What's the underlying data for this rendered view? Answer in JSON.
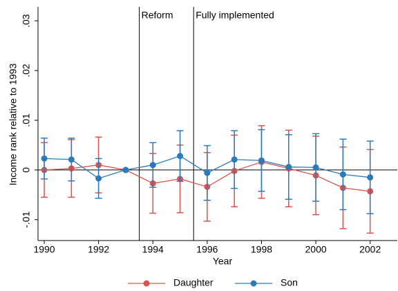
{
  "chart_data": {
    "type": "line",
    "x_label": "Year",
    "y_label": "Income rank relative to 1993",
    "x": [
      1990,
      1991,
      1992,
      1993,
      1994,
      1995,
      1996,
      1997,
      1998,
      1999,
      2000,
      2001,
      2002
    ],
    "xlim": [
      1989.77,
      2003
    ],
    "xticks": [
      1990,
      1992,
      1994,
      1996,
      1998,
      2000,
      2002
    ],
    "ylim": [
      -0.0142,
      0.0328
    ],
    "yticks": [
      {
        "value": -0.01,
        "label": "-.01"
      },
      {
        "value": 0,
        "label": "0"
      },
      {
        "value": 0.01,
        "label": ".01"
      },
      {
        "value": 0.02,
        "label": ".02"
      },
      {
        "value": 0.03,
        "label": ".03"
      }
    ],
    "reference_y": 0,
    "vlines": [
      {
        "x": 1993.5,
        "label": "Reform"
      },
      {
        "x": 1995.5,
        "label": "Fully implemented"
      }
    ],
    "legend": "bottom",
    "series": [
      {
        "name": "Daughter",
        "color": "#d9534f",
        "values": [
          0.0,
          0.0003,
          0.001,
          0.0,
          -0.0027,
          -0.0018,
          -0.0034,
          -0.0002,
          0.0016,
          0.0003,
          -0.0011,
          -0.0036,
          -0.0043
        ],
        "errors": [
          0.0055,
          0.0058,
          0.0056,
          0.0,
          0.006,
          0.0068,
          0.0069,
          0.0072,
          0.0073,
          0.0077,
          0.0079,
          0.0082,
          0.0084
        ]
      },
      {
        "name": "Son",
        "color": "#2b7bba",
        "values": [
          0.0023,
          0.0021,
          -0.0017,
          0.0,
          0.001,
          0.0028,
          -0.0006,
          0.0021,
          0.0019,
          0.0006,
          0.0005,
          -0.0009,
          -0.0015
        ],
        "errors": [
          0.0041,
          0.0043,
          0.004,
          0.0,
          0.0045,
          0.0051,
          0.0055,
          0.0058,
          0.0062,
          0.0065,
          0.0068,
          0.0071,
          0.0073
        ]
      }
    ]
  }
}
